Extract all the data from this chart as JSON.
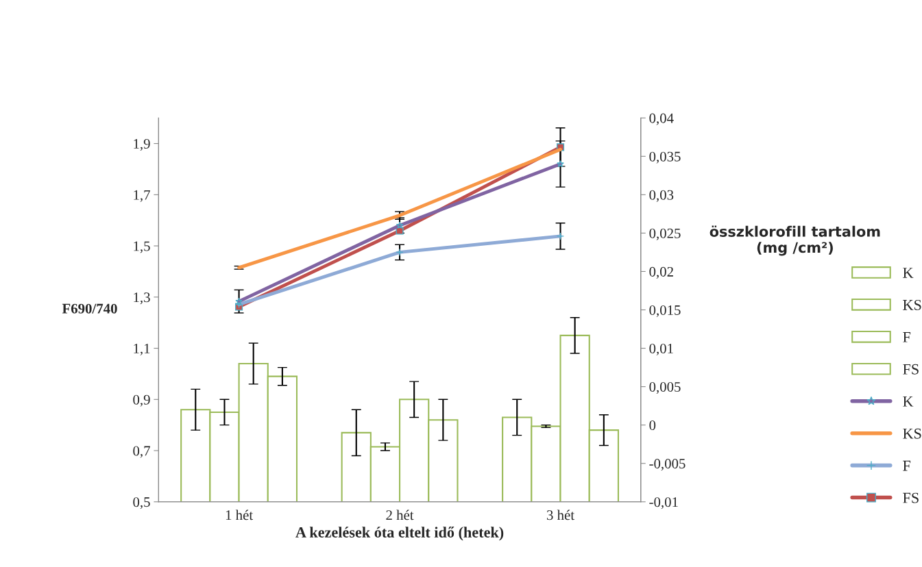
{
  "chart_data": {
    "type": "bar",
    "xlabel": "A kezelések óta eltelt idő (hetek)",
    "ylabel": "F690/740",
    "y2label": "összklorofill tartalom\n(mg /cm²)",
    "categories": [
      "1 hét",
      "2 hét",
      "3 hét"
    ],
    "ylim": [
      0.5,
      2.0
    ],
    "yticks": [
      {
        "value": 0.5,
        "label": "0,5"
      },
      {
        "value": 0.7,
        "label": "0,7"
      },
      {
        "value": 0.9,
        "label": "0,9"
      },
      {
        "value": 1.1,
        "label": "1,1"
      },
      {
        "value": 1.3,
        "label": "1,3"
      },
      {
        "value": 1.5,
        "label": "1,5"
      },
      {
        "value": 1.7,
        "label": "1,7"
      },
      {
        "value": 1.9,
        "label": "1,9"
      }
    ],
    "y2lim": [
      -0.01,
      0.04
    ],
    "y2ticks": [
      {
        "value": -0.01,
        "label": "-0,01"
      },
      {
        "value": -0.005,
        "label": "-0,005"
      },
      {
        "value": 0,
        "label": "0"
      },
      {
        "value": 0.005,
        "label": "0,005"
      },
      {
        "value": 0.01,
        "label": "0,01"
      },
      {
        "value": 0.015,
        "label": "0,015"
      },
      {
        "value": 0.02,
        "label": "0,02"
      },
      {
        "value": 0.025,
        "label": "0,025"
      },
      {
        "value": 0.03,
        "label": "0,03"
      },
      {
        "value": 0.035,
        "label": "0,035"
      },
      {
        "value": 0.04,
        "label": "0,04"
      }
    ],
    "grid": false,
    "legend": "right",
    "series": [
      {
        "name": "K",
        "color": "#9bbb59",
        "values": [
          0.86,
          0.77,
          0.83
        ],
        "errors": [
          0.08,
          0.09,
          0.07
        ]
      },
      {
        "name": "KS",
        "color": "#9bbb59",
        "values": [
          0.85,
          0.715,
          0.795
        ],
        "errors": [
          0.05,
          0.015,
          0.005
        ]
      },
      {
        "name": "F",
        "color": "#9bbb59",
        "values": [
          1.04,
          0.9,
          1.15
        ],
        "errors": [
          0.08,
          0.07,
          0.07
        ]
      },
      {
        "name": "FS",
        "color": "#9bbb59",
        "values": [
          0.99,
          0.82,
          0.78
        ],
        "errors": [
          0.035,
          0.08,
          0.06
        ]
      },
      {
        "name": "K",
        "type": "line",
        "axis": "y2",
        "marker": "star",
        "color": "#8064a2",
        "values": [
          0.0161,
          0.026,
          0.034
        ],
        "errors": [
          0.0015,
          0.001,
          0.003
        ]
      },
      {
        "name": "KS",
        "type": "line",
        "axis": "y2",
        "marker": "none",
        "color": "#f79646",
        "values": [
          0.0205,
          0.0273,
          0.0359
        ],
        "errors": [
          0.0002,
          0.0005,
          null
        ]
      },
      {
        "name": "F",
        "type": "line",
        "axis": "y2",
        "marker": "cross",
        "color": "#8eaad6",
        "values": [
          0.0157,
          0.0225,
          0.0246
        ],
        "errors": [
          null,
          0.001,
          0.0017
        ]
      },
      {
        "name": "FS",
        "type": "line",
        "axis": "y2",
        "marker": "square",
        "color": "#c0504d",
        "values": [
          0.0154,
          0.0253,
          0.0362
        ],
        "errors": [
          null,
          null,
          0.0025
        ]
      }
    ]
  }
}
